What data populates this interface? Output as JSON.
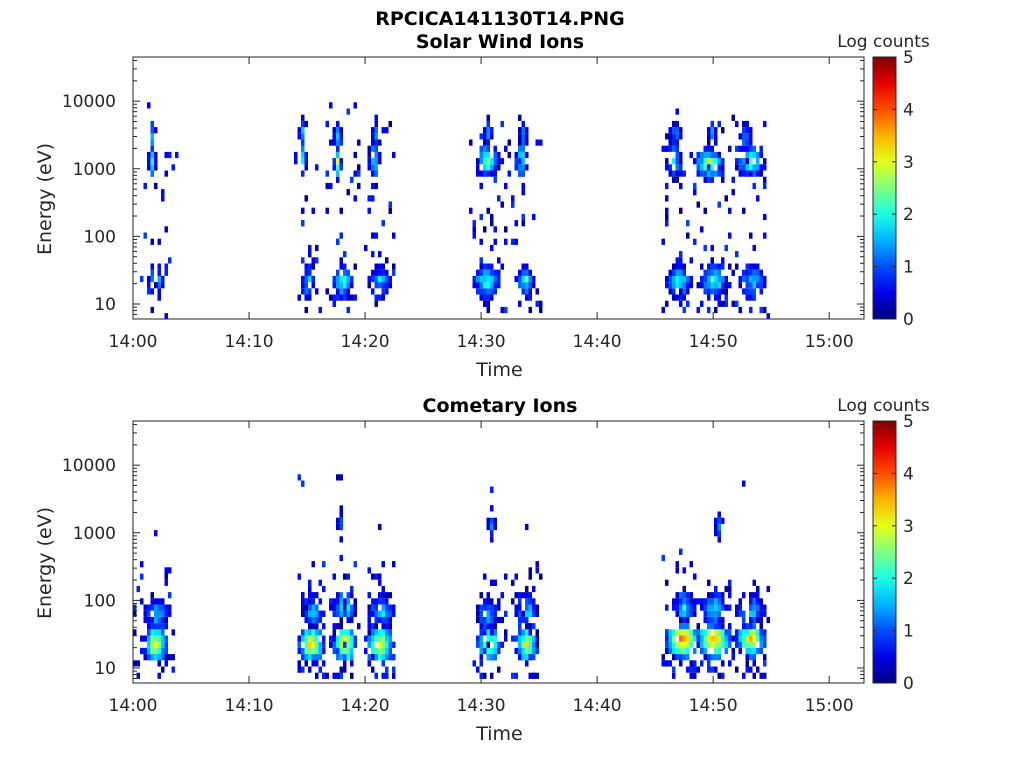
{
  "figure_title": "RPCICA141130T14.PNG",
  "chart_data": [
    {
      "type": "heatmap",
      "title": "Solar Wind Ions",
      "xlabel": "Time",
      "ylabel": "Energy (eV)",
      "yscale": "log",
      "xlim": [
        "14:00",
        "15:03"
      ],
      "ylim": [
        6,
        45000
      ],
      "xticks": [
        "14:00",
        "14:10",
        "14:20",
        "14:30",
        "14:40",
        "14:50",
        "15:00"
      ],
      "yticks": [
        "10",
        "100",
        "1000",
        "10000"
      ],
      "colorbar": {
        "label": "Log counts",
        "range": [
          0,
          5
        ],
        "ticks": [
          "0",
          "1",
          "2",
          "3",
          "4",
          "5"
        ]
      },
      "grid": false,
      "blobs": [
        {
          "t0": "14:01.2",
          "t1": "14:01.9",
          "e": 1300,
          "peak": 2.0
        },
        {
          "t0": "14:01.4",
          "t1": "14:01.7",
          "e": 3000,
          "peak": 1.4
        },
        {
          "t0": "14:01.3",
          "t1": "14:02.3",
          "e": 22,
          "peak": 1.8
        },
        {
          "t0": "14:14.0",
          "t1": "14:14.7",
          "e": 1400,
          "peak": 2.0
        },
        {
          "t0": "14:14.2",
          "t1": "14:14.6",
          "e": 3500,
          "peak": 1.5
        },
        {
          "t0": "14:14.6",
          "t1": "14:15.4",
          "e": 22,
          "peak": 2.0
        },
        {
          "t0": "14:17.1",
          "t1": "14:17.8",
          "e": 1200,
          "peak": 3.0
        },
        {
          "t0": "14:17.3",
          "t1": "14:17.7",
          "e": 3000,
          "peak": 1.5
        },
        {
          "t0": "14:17.3",
          "t1": "14:18.8",
          "e": 22,
          "peak": 2.4
        },
        {
          "t0": "14:20.3",
          "t1": "14:21.2",
          "e": 1300,
          "peak": 2.1
        },
        {
          "t0": "14:20.5",
          "t1": "14:20.9",
          "e": 3000,
          "peak": 1.4
        },
        {
          "t0": "14:20.3",
          "t1": "14:22.0",
          "e": 22,
          "peak": 1.7
        },
        {
          "t0": "14:29.5",
          "t1": "14:31.4",
          "e": 1300,
          "peak": 2.4
        },
        {
          "t0": "14:30.3",
          "t1": "14:30.8",
          "e": 3500,
          "peak": 1.5
        },
        {
          "t0": "14:29.3",
          "t1": "14:31.5",
          "e": 22,
          "peak": 2.3
        },
        {
          "t0": "14:33.0",
          "t1": "14:33.9",
          "e": 1300,
          "peak": 2.3
        },
        {
          "t0": "14:33.2",
          "t1": "14:33.7",
          "e": 3000,
          "peak": 1.4
        },
        {
          "t0": "14:32.8",
          "t1": "14:34.5",
          "e": 22,
          "peak": 2.2
        },
        {
          "t0": "14:46.0",
          "t1": "14:47.2",
          "e": 1300,
          "peak": 1.8
        },
        {
          "t0": "14:46.2",
          "t1": "14:47.0",
          "e": 3000,
          "peak": 1.3
        },
        {
          "t0": "14:45.8",
          "t1": "14:48.0",
          "e": 22,
          "peak": 2.1
        },
        {
          "t0": "14:48.3",
          "t1": "14:50.8",
          "e": 1200,
          "peak": 2.7
        },
        {
          "t0": "14:49.5",
          "t1": "14:50.2",
          "e": 3000,
          "peak": 1.5
        },
        {
          "t0": "14:49.0",
          "t1": "14:51.0",
          "e": 22,
          "peak": 2.3
        },
        {
          "t0": "14:51.8",
          "t1": "14:54.2",
          "e": 1300,
          "peak": 2.1
        },
        {
          "t0": "14:52.2",
          "t1": "14:53.0",
          "e": 3000,
          "peak": 1.4
        },
        {
          "t0": "14:52.2",
          "t1": "14:54.2",
          "e": 22,
          "peak": 1.8
        }
      ],
      "speckles": [
        {
          "t0": "14:00.5",
          "t1": "14:03.5",
          "e0": 7,
          "e1": 9000,
          "n": 24
        },
        {
          "t0": "14:14.0",
          "t1": "14:16.0",
          "e0": 8,
          "e1": 7000,
          "n": 22
        },
        {
          "t0": "14:16.5",
          "t1": "14:19.5",
          "e0": 8,
          "e1": 9000,
          "n": 45
        },
        {
          "t0": "14:20.0",
          "t1": "14:22.5",
          "e0": 8,
          "e1": 7000,
          "n": 30
        },
        {
          "t0": "14:29.0",
          "t1": "14:32.5",
          "e0": 8,
          "e1": 9000,
          "n": 50
        },
        {
          "t0": "14:32.5",
          "t1": "14:35.0",
          "e0": 8,
          "e1": 7000,
          "n": 30
        },
        {
          "t0": "14:45.5",
          "t1": "14:48.0",
          "e0": 8,
          "e1": 7000,
          "n": 40
        },
        {
          "t0": "14:48.0",
          "t1": "14:51.5",
          "e0": 8,
          "e1": 7000,
          "n": 50
        },
        {
          "t0": "14:51.5",
          "t1": "14:54.5",
          "e0": 7,
          "e1": 7000,
          "n": 35
        }
      ]
    },
    {
      "type": "heatmap",
      "title": "Cometary Ions",
      "xlabel": "Time",
      "ylabel": "Energy (eV)",
      "yscale": "log",
      "xlim": [
        "14:00",
        "15:03"
      ],
      "ylim": [
        6,
        45000
      ],
      "xticks": [
        "14:00",
        "14:10",
        "14:20",
        "14:30",
        "14:40",
        "14:50",
        "15:00"
      ],
      "yticks": [
        "10",
        "100",
        "1000",
        "10000"
      ],
      "colorbar": {
        "label": "Log counts",
        "range": [
          0,
          5
        ],
        "ticks": [
          "0",
          "1",
          "2",
          "3",
          "4",
          "5"
        ]
      },
      "grid": false,
      "blobs": [
        {
          "t0": "14:00.8",
          "t1": "14:02.8",
          "e": 22,
          "peak": 3.3
        },
        {
          "t0": "14:01.0",
          "t1": "14:03.0",
          "e": 60,
          "peak": 1.6
        },
        {
          "t0": "14:14.3",
          "t1": "14:16.3",
          "e": 22,
          "peak": 3.5
        },
        {
          "t0": "14:14.6",
          "t1": "14:16.3",
          "e": 70,
          "peak": 1.8
        },
        {
          "t0": "14:17.1",
          "t1": "14:19.0",
          "e": 22,
          "peak": 3.6
        },
        {
          "t0": "14:17.3",
          "t1": "14:18.9",
          "e": 80,
          "peak": 1.9
        },
        {
          "t0": "14:20.0",
          "t1": "14:22.3",
          "e": 22,
          "peak": 3.3
        },
        {
          "t0": "14:20.3",
          "t1": "14:22.3",
          "e": 70,
          "peak": 1.7
        },
        {
          "t0": "14:29.5",
          "t1": "14:31.5",
          "e": 22,
          "peak": 3.0
        },
        {
          "t0": "14:29.5",
          "t1": "14:31.3",
          "e": 60,
          "peak": 1.6
        },
        {
          "t0": "14:32.8",
          "t1": "14:34.6",
          "e": 22,
          "peak": 3.1
        },
        {
          "t0": "14:33.0",
          "t1": "14:34.6",
          "e": 70,
          "peak": 1.7
        },
        {
          "t0": "14:45.8",
          "t1": "14:48.6",
          "e": 26,
          "peak": 4.1
        },
        {
          "t0": "14:46.4",
          "t1": "14:48.3",
          "e": 80,
          "peak": 1.9
        },
        {
          "t0": "14:48.6",
          "t1": "14:51.2",
          "e": 26,
          "peak": 3.9
        },
        {
          "t0": "14:49.0",
          "t1": "14:51.0",
          "e": 75,
          "peak": 1.8
        },
        {
          "t0": "14:51.8",
          "t1": "14:54.4",
          "e": 26,
          "peak": 3.6
        },
        {
          "t0": "14:52.0",
          "t1": "14:54.2",
          "e": 70,
          "peak": 1.8
        },
        {
          "t0": "14:50.0",
          "t1": "14:50.6",
          "e": 1200,
          "peak": 1.4
        },
        {
          "t0": "14:17.6",
          "t1": "14:17.9",
          "e": 1300,
          "peak": 1.1
        },
        {
          "t0": "14:30.6",
          "t1": "14:31.0",
          "e": 1300,
          "peak": 1.2
        }
      ],
      "speckles": [
        {
          "t0": "14:00.0",
          "t1": "14:03.3",
          "e0": 7,
          "e1": 350,
          "n": 40
        },
        {
          "t0": "14:14.0",
          "t1": "14:16.5",
          "e0": 7,
          "e1": 350,
          "n": 40
        },
        {
          "t0": "14:16.8",
          "t1": "14:19.2",
          "e0": 7,
          "e1": 450,
          "n": 45
        },
        {
          "t0": "14:20.0",
          "t1": "14:22.5",
          "e0": 7,
          "e1": 450,
          "n": 40
        },
        {
          "t0": "14:29.2",
          "t1": "14:32.0",
          "e0": 7,
          "e1": 250,
          "n": 35
        },
        {
          "t0": "14:32.5",
          "t1": "14:35.0",
          "e0": 7,
          "e1": 350,
          "n": 35
        },
        {
          "t0": "14:45.5",
          "t1": "14:48.5",
          "e0": 8,
          "e1": 550,
          "n": 45
        },
        {
          "t0": "14:48.3",
          "t1": "14:51.5",
          "e0": 8,
          "e1": 300,
          "n": 40
        },
        {
          "t0": "14:51.5",
          "t1": "14:54.5",
          "e0": 8,
          "e1": 250,
          "n": 35
        },
        {
          "t0": "14:14.0",
          "t1": "14:14.5",
          "e0": 5000,
          "e1": 7000,
          "n": 3
        },
        {
          "t0": "14:17.6",
          "t1": "14:18.0",
          "e0": 5000,
          "e1": 7000,
          "n": 2
        },
        {
          "t0": "14:30.6",
          "t1": "14:31.0",
          "e0": 2000,
          "e1": 7000,
          "n": 4
        },
        {
          "t0": "14:52.5",
          "t1": "14:52.8",
          "e0": 5000,
          "e1": 7000,
          "n": 1
        },
        {
          "t0": "14:01.6",
          "t1": "14:01.9",
          "e0": 1000,
          "e1": 1300,
          "n": 1
        },
        {
          "t0": "14:20.9",
          "t1": "14:21.2",
          "e0": 1000,
          "e1": 1300,
          "n": 1
        },
        {
          "t0": "14:33.8",
          "t1": "14:34.1",
          "e0": 1000,
          "e1": 1300,
          "n": 1
        }
      ]
    }
  ]
}
